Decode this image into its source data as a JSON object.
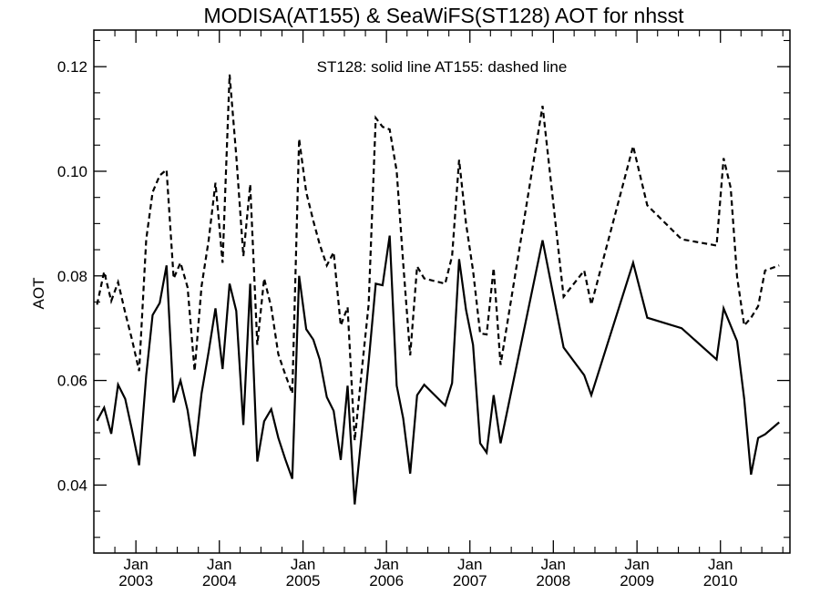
{
  "chart_data": {
    "type": "line",
    "title": "MODISA(AT155) & SeaWiFS(ST128)  AOT for nhsst",
    "annotation": "ST128: solid line   AT155: dashed line",
    "xlabel": "",
    "ylabel": "AOT",
    "xlim": [
      "2002-07-01",
      "2010-11-01"
    ],
    "ylim": [
      0.027,
      0.127
    ],
    "yticks": [
      0.04,
      0.06,
      0.08,
      0.1,
      0.12
    ],
    "ytick_labels": [
      "0.04",
      "0.06",
      "0.08",
      "0.10",
      "0.12"
    ],
    "xticks": [
      "2003-01-01",
      "2004-01-01",
      "2005-01-01",
      "2006-01-01",
      "2007-01-01",
      "2008-01-01",
      "2009-01-01",
      "2010-01-01"
    ],
    "xtick_month_label": "Jan",
    "xtick_year_labels": [
      "2003",
      "2004",
      "2005",
      "2006",
      "2007",
      "2008",
      "2009",
      "2010"
    ],
    "grid": false,
    "series": [
      {
        "name": "ST128",
        "style": "solid",
        "color": "#000000",
        "points": [
          [
            "2002-07-15",
            0.0523
          ],
          [
            "2002-08-15",
            0.0548
          ],
          [
            "2002-09-15",
            0.0498
          ],
          [
            "2002-10-15",
            0.0592
          ],
          [
            "2002-11-15",
            0.0565
          ],
          [
            "2002-12-15",
            0.0505
          ],
          [
            "2003-01-15",
            0.0438
          ],
          [
            "2003-02-15",
            0.061
          ],
          [
            "2003-03-15",
            0.0725
          ],
          [
            "2003-04-15",
            0.0748
          ],
          [
            "2003-05-15",
            0.082
          ],
          [
            "2003-06-15",
            0.0558
          ],
          [
            "2003-07-15",
            0.06
          ],
          [
            "2003-08-15",
            0.0543
          ],
          [
            "2003-09-15",
            0.0455
          ],
          [
            "2003-10-15",
            0.0575
          ],
          [
            "2003-11-15",
            0.0655
          ],
          [
            "2003-12-15",
            0.0738
          ],
          [
            "2004-01-15",
            0.0622
          ],
          [
            "2004-02-15",
            0.0785
          ],
          [
            "2004-03-15",
            0.0733
          ],
          [
            "2004-04-15",
            0.0515
          ],
          [
            "2004-05-15",
            0.0785
          ],
          [
            "2004-06-15",
            0.0445
          ],
          [
            "2004-07-15",
            0.0522
          ],
          [
            "2004-08-15",
            0.0545
          ],
          [
            "2004-09-15",
            0.049
          ],
          [
            "2004-10-15",
            0.045
          ],
          [
            "2004-11-15",
            0.0412
          ],
          [
            "2004-12-15",
            0.08
          ],
          [
            "2005-01-15",
            0.0698
          ],
          [
            "2005-02-15",
            0.0678
          ],
          [
            "2005-03-15",
            0.064
          ],
          [
            "2005-04-15",
            0.0568
          ],
          [
            "2005-05-15",
            0.0542
          ],
          [
            "2005-06-15",
            0.0448
          ],
          [
            "2005-07-15",
            0.059
          ],
          [
            "2005-08-15",
            0.0363
          ],
          [
            "2005-09-15",
            0.05
          ],
          [
            "2005-10-15",
            0.0635
          ],
          [
            "2005-11-15",
            0.0785
          ],
          [
            "2005-12-15",
            0.0782
          ],
          [
            "2006-01-15",
            0.0877
          ],
          [
            "2006-02-15",
            0.059
          ],
          [
            "2006-03-15",
            0.0528
          ],
          [
            "2006-04-15",
            0.0422
          ],
          [
            "2006-05-15",
            0.0572
          ],
          [
            "2006-06-15",
            0.0592
          ],
          [
            "2006-09-15",
            0.0552
          ],
          [
            "2006-10-15",
            0.0595
          ],
          [
            "2006-11-15",
            0.0832
          ],
          [
            "2006-12-15",
            0.0735
          ],
          [
            "2007-01-15",
            0.0668
          ],
          [
            "2007-02-15",
            0.048
          ],
          [
            "2007-03-15",
            0.0462
          ],
          [
            "2007-04-15",
            0.0572
          ],
          [
            "2007-05-15",
            0.048
          ],
          [
            "2007-11-15",
            0.0868
          ],
          [
            "2008-02-15",
            0.0663
          ],
          [
            "2008-05-15",
            0.061
          ],
          [
            "2008-06-15",
            0.0572
          ],
          [
            "2008-12-15",
            0.0825
          ],
          [
            "2009-02-15",
            0.072
          ],
          [
            "2009-07-15",
            0.07
          ],
          [
            "2009-12-15",
            0.064
          ],
          [
            "2010-01-15",
            0.0738
          ],
          [
            "2010-03-15",
            0.0675
          ],
          [
            "2010-04-15",
            0.0565
          ],
          [
            "2010-05-15",
            0.042
          ],
          [
            "2010-06-15",
            0.049
          ],
          [
            "2010-07-15",
            0.0497
          ],
          [
            "2010-09-15",
            0.052
          ]
        ]
      },
      {
        "name": "AT155",
        "style": "dashed",
        "color": "#000000",
        "points": [
          [
            "2002-07-15",
            0.0745
          ],
          [
            "2002-08-15",
            0.0808
          ],
          [
            "2002-09-15",
            0.0752
          ],
          [
            "2002-10-15",
            0.0788
          ],
          [
            "2002-11-15",
            0.073
          ],
          [
            "2002-12-15",
            0.0678
          ],
          [
            "2003-01-15",
            0.0618
          ],
          [
            "2003-02-15",
            0.087
          ],
          [
            "2003-03-15",
            0.096
          ],
          [
            "2003-04-15",
            0.0992
          ],
          [
            "2003-05-15",
            0.1003
          ],
          [
            "2003-06-15",
            0.0795
          ],
          [
            "2003-07-15",
            0.0825
          ],
          [
            "2003-08-15",
            0.0778
          ],
          [
            "2003-09-15",
            0.0618
          ],
          [
            "2003-10-15",
            0.078
          ],
          [
            "2003-11-15",
            0.0868
          ],
          [
            "2003-12-15",
            0.0978
          ],
          [
            "2004-01-15",
            0.0825
          ],
          [
            "2004-02-15",
            0.1185
          ],
          [
            "2004-03-15",
            0.103
          ],
          [
            "2004-04-15",
            0.0838
          ],
          [
            "2004-05-15",
            0.0975
          ],
          [
            "2004-06-15",
            0.0668
          ],
          [
            "2004-07-15",
            0.0795
          ],
          [
            "2004-08-15",
            0.074
          ],
          [
            "2004-09-15",
            0.065
          ],
          [
            "2004-10-15",
            0.0612
          ],
          [
            "2004-11-15",
            0.0575
          ],
          [
            "2004-12-15",
            0.1062
          ],
          [
            "2005-01-15",
            0.096
          ],
          [
            "2005-02-15",
            0.0905
          ],
          [
            "2005-03-15",
            0.086
          ],
          [
            "2005-04-15",
            0.082
          ],
          [
            "2005-05-15",
            0.0845
          ],
          [
            "2005-06-15",
            0.0705
          ],
          [
            "2005-07-15",
            0.074
          ],
          [
            "2005-08-15",
            0.0485
          ],
          [
            "2005-09-15",
            0.062
          ],
          [
            "2005-10-15",
            0.0745
          ],
          [
            "2005-11-15",
            0.1102
          ],
          [
            "2005-12-15",
            0.1085
          ],
          [
            "2006-01-15",
            0.108
          ],
          [
            "2006-02-15",
            0.1
          ],
          [
            "2006-03-15",
            0.0825
          ],
          [
            "2006-04-15",
            0.0648
          ],
          [
            "2006-05-15",
            0.0818
          ],
          [
            "2006-06-15",
            0.0795
          ],
          [
            "2006-09-15",
            0.0785
          ],
          [
            "2006-10-15",
            0.0838
          ],
          [
            "2006-11-15",
            0.1022
          ],
          [
            "2006-12-15",
            0.09
          ],
          [
            "2007-01-15",
            0.081
          ],
          [
            "2007-02-15",
            0.069
          ],
          [
            "2007-03-15",
            0.0688
          ],
          [
            "2007-04-15",
            0.0815
          ],
          [
            "2007-05-15",
            0.063
          ],
          [
            "2007-11-15",
            0.1125
          ],
          [
            "2008-02-15",
            0.076
          ],
          [
            "2008-05-15",
            0.081
          ],
          [
            "2008-06-15",
            0.0745
          ],
          [
            "2008-12-15",
            0.1048
          ],
          [
            "2009-02-15",
            0.0935
          ],
          [
            "2009-07-15",
            0.087
          ],
          [
            "2009-12-15",
            0.0858
          ],
          [
            "2010-01-15",
            0.1025
          ],
          [
            "2010-02-15",
            0.0968
          ],
          [
            "2010-03-15",
            0.0798
          ],
          [
            "2010-04-15",
            0.0705
          ],
          [
            "2010-05-15",
            0.072
          ],
          [
            "2010-06-15",
            0.0742
          ],
          [
            "2010-07-15",
            0.081
          ],
          [
            "2010-09-15",
            0.082
          ]
        ]
      }
    ]
  }
}
